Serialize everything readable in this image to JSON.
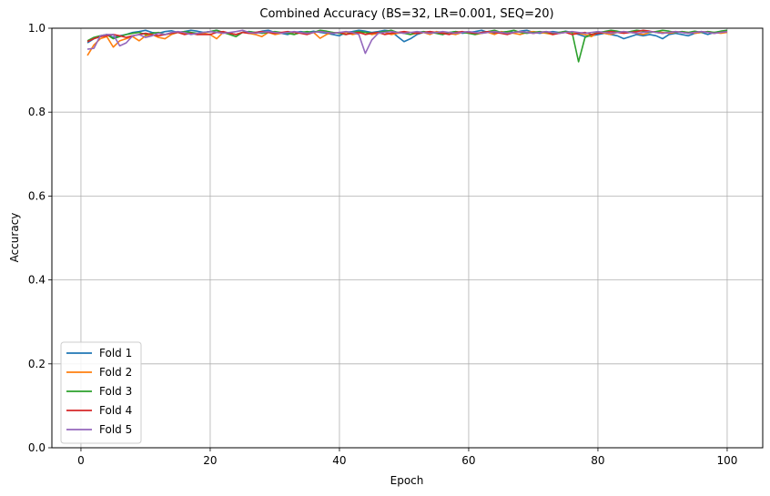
{
  "chart_data": {
    "type": "line",
    "title": "Combined Accuracy (BS=32, LR=0.001, SEQ=20)",
    "xlabel": "Epoch",
    "ylabel": "Accuracy",
    "xlim": [
      -4.5,
      105.5
    ],
    "ylim": [
      0.0,
      1.0
    ],
    "xticks": [
      0,
      20,
      40,
      60,
      80,
      100
    ],
    "yticks": [
      0.0,
      0.2,
      0.4,
      0.6,
      0.8,
      1.0
    ],
    "grid": true,
    "legend": "lower-left",
    "x": [
      1,
      2,
      3,
      4,
      5,
      6,
      7,
      8,
      9,
      10,
      11,
      12,
      13,
      14,
      15,
      16,
      17,
      18,
      19,
      20,
      21,
      22,
      23,
      24,
      25,
      26,
      27,
      28,
      29,
      30,
      31,
      32,
      33,
      34,
      35,
      36,
      37,
      38,
      39,
      40,
      41,
      42,
      43,
      44,
      45,
      46,
      47,
      48,
      49,
      50,
      51,
      52,
      53,
      54,
      55,
      56,
      57,
      58,
      59,
      60,
      61,
      62,
      63,
      64,
      65,
      66,
      67,
      68,
      69,
      70,
      71,
      72,
      73,
      74,
      75,
      76,
      77,
      78,
      79,
      80,
      81,
      82,
      83,
      84,
      85,
      86,
      87,
      88,
      89,
      90,
      91,
      92,
      93,
      94,
      95,
      96,
      97,
      98,
      99,
      100
    ],
    "series": [
      {
        "name": "Fold 1",
        "color": "#1f77b4",
        "values": [
          0.965,
          0.975,
          0.98,
          0.985,
          0.978,
          0.982,
          0.985,
          0.99,
          0.992,
          0.995,
          0.99,
          0.988,
          0.992,
          0.994,
          0.99,
          0.992,
          0.995,
          0.993,
          0.99,
          0.992,
          0.995,
          0.99,
          0.988,
          0.985,
          0.99,
          0.992,
          0.99,
          0.993,
          0.995,
          0.99,
          0.988,
          0.985,
          0.99,
          0.992,
          0.99,
          0.993,
          0.99,
          0.988,
          0.985,
          0.982,
          0.99,
          0.992,
          0.995,
          0.993,
          0.99,
          0.992,
          0.995,
          0.993,
          0.98,
          0.968,
          0.975,
          0.985,
          0.99,
          0.992,
          0.988,
          0.985,
          0.99,
          0.992,
          0.988,
          0.99,
          0.992,
          0.995,
          0.99,
          0.988,
          0.99,
          0.992,
          0.99,
          0.993,
          0.995,
          0.99,
          0.988,
          0.99,
          0.992,
          0.99,
          0.993,
          0.99,
          0.985,
          0.98,
          0.982,
          0.985,
          0.988,
          0.985,
          0.982,
          0.975,
          0.98,
          0.985,
          0.982,
          0.985,
          0.982,
          0.975,
          0.985,
          0.988,
          0.985,
          0.982,
          0.988,
          0.99,
          0.985,
          0.99,
          0.992,
          0.995
        ]
      },
      {
        "name": "Fold 2",
        "color": "#ff7f0e",
        "values": [
          0.935,
          0.96,
          0.975,
          0.98,
          0.955,
          0.97,
          0.975,
          0.98,
          0.97,
          0.982,
          0.985,
          0.978,
          0.975,
          0.985,
          0.99,
          0.988,
          0.99,
          0.985,
          0.988,
          0.985,
          0.975,
          0.99,
          0.988,
          0.985,
          0.99,
          0.988,
          0.985,
          0.98,
          0.99,
          0.985,
          0.988,
          0.99,
          0.985,
          0.99,
          0.988,
          0.99,
          0.976,
          0.985,
          0.99,
          0.988,
          0.99,
          0.985,
          0.988,
          0.99,
          0.985,
          0.988,
          0.99,
          0.985,
          0.988,
          0.99,
          0.985,
          0.988,
          0.99,
          0.985,
          0.992,
          0.99,
          0.988,
          0.985,
          0.99,
          0.992,
          0.985,
          0.988,
          0.99,
          0.985,
          0.992,
          0.99,
          0.988,
          0.985,
          0.99,
          0.992,
          0.99,
          0.988,
          0.985,
          0.99,
          0.992,
          0.99,
          0.988,
          0.985,
          0.98,
          0.99,
          0.988,
          0.985,
          0.99,
          0.992,
          0.99,
          0.988,
          0.985,
          0.99,
          0.992,
          0.99,
          0.988,
          0.99,
          0.992,
          0.99,
          0.988,
          0.99,
          0.992,
          0.99,
          0.988,
          0.99
        ]
      },
      {
        "name": "Fold 3",
        "color": "#2ca02c",
        "values": [
          0.97,
          0.978,
          0.982,
          0.985,
          0.975,
          0.98,
          0.985,
          0.988,
          0.99,
          0.985,
          0.988,
          0.99,
          0.985,
          0.988,
          0.99,
          0.992,
          0.99,
          0.988,
          0.99,
          0.992,
          0.995,
          0.99,
          0.985,
          0.98,
          0.99,
          0.992,
          0.99,
          0.988,
          0.99,
          0.992,
          0.99,
          0.988,
          0.985,
          0.99,
          0.992,
          0.99,
          0.995,
          0.993,
          0.99,
          0.988,
          0.985,
          0.99,
          0.992,
          0.99,
          0.988,
          0.99,
          0.992,
          0.995,
          0.99,
          0.988,
          0.985,
          0.99,
          0.992,
          0.99,
          0.988,
          0.985,
          0.99,
          0.992,
          0.99,
          0.988,
          0.985,
          0.99,
          0.992,
          0.995,
          0.99,
          0.992,
          0.995,
          0.99,
          0.988,
          0.99,
          0.992,
          0.99,
          0.988,
          0.99,
          0.992,
          0.99,
          0.92,
          0.978,
          0.985,
          0.99,
          0.992,
          0.995,
          0.993,
          0.99,
          0.992,
          0.995,
          0.993,
          0.99,
          0.992,
          0.995,
          0.993,
          0.99,
          0.992,
          0.99,
          0.993,
          0.99,
          0.992,
          0.99,
          0.993,
          0.995
        ]
      },
      {
        "name": "Fold 4",
        "color": "#d62728",
        "values": [
          0.968,
          0.975,
          0.98,
          0.982,
          0.985,
          0.982,
          0.978,
          0.982,
          0.985,
          0.988,
          0.985,
          0.982,
          0.985,
          0.988,
          0.99,
          0.985,
          0.988,
          0.985,
          0.985,
          0.985,
          0.99,
          0.992,
          0.988,
          0.985,
          0.99,
          0.988,
          0.99,
          0.992,
          0.99,
          0.988,
          0.99,
          0.992,
          0.99,
          0.988,
          0.985,
          0.99,
          0.992,
          0.99,
          0.988,
          0.99,
          0.985,
          0.988,
          0.99,
          0.985,
          0.988,
          0.99,
          0.985,
          0.988,
          0.99,
          0.992,
          0.99,
          0.988,
          0.99,
          0.992,
          0.99,
          0.988,
          0.985,
          0.99,
          0.992,
          0.99,
          0.988,
          0.99,
          0.992,
          0.99,
          0.988,
          0.985,
          0.99,
          0.992,
          0.99,
          0.988,
          0.99,
          0.992,
          0.985,
          0.988,
          0.99,
          0.985,
          0.988,
          0.99,
          0.985,
          0.988,
          0.99,
          0.992,
          0.99,
          0.988,
          0.99,
          0.992,
          0.995,
          0.993,
          0.99,
          0.988,
          0.99,
          0.992,
          0.99,
          0.988,
          0.99,
          0.992,
          0.99,
          0.988,
          0.99,
          0.992
        ]
      },
      {
        "name": "Fold 5",
        "color": "#9467bd",
        "values": [
          0.95,
          0.952,
          0.982,
          0.985,
          0.985,
          0.958,
          0.965,
          0.982,
          0.985,
          0.978,
          0.982,
          0.988,
          0.985,
          0.99,
          0.992,
          0.99,
          0.985,
          0.988,
          0.99,
          0.992,
          0.99,
          0.988,
          0.99,
          0.992,
          0.995,
          0.99,
          0.988,
          0.99,
          0.992,
          0.99,
          0.988,
          0.99,
          0.992,
          0.99,
          0.988,
          0.99,
          0.992,
          0.99,
          0.988,
          0.99,
          0.992,
          0.99,
          0.985,
          0.94,
          0.972,
          0.988,
          0.99,
          0.992,
          0.99,
          0.988,
          0.99,
          0.992,
          0.99,
          0.988,
          0.99,
          0.992,
          0.99,
          0.988,
          0.99,
          0.992,
          0.99,
          0.988,
          0.99,
          0.992,
          0.99,
          0.988,
          0.99,
          0.992,
          0.99,
          0.988,
          0.99,
          0.992,
          0.99,
          0.988,
          0.99,
          0.992,
          0.99,
          0.988,
          0.99,
          0.992,
          0.99,
          0.988,
          0.99,
          0.992,
          0.99,
          0.988,
          0.99,
          0.992,
          0.99,
          0.988,
          0.99,
          0.992,
          0.99,
          0.988,
          0.99,
          0.992,
          0.99,
          0.988,
          0.99,
          0.992
        ]
      }
    ]
  }
}
